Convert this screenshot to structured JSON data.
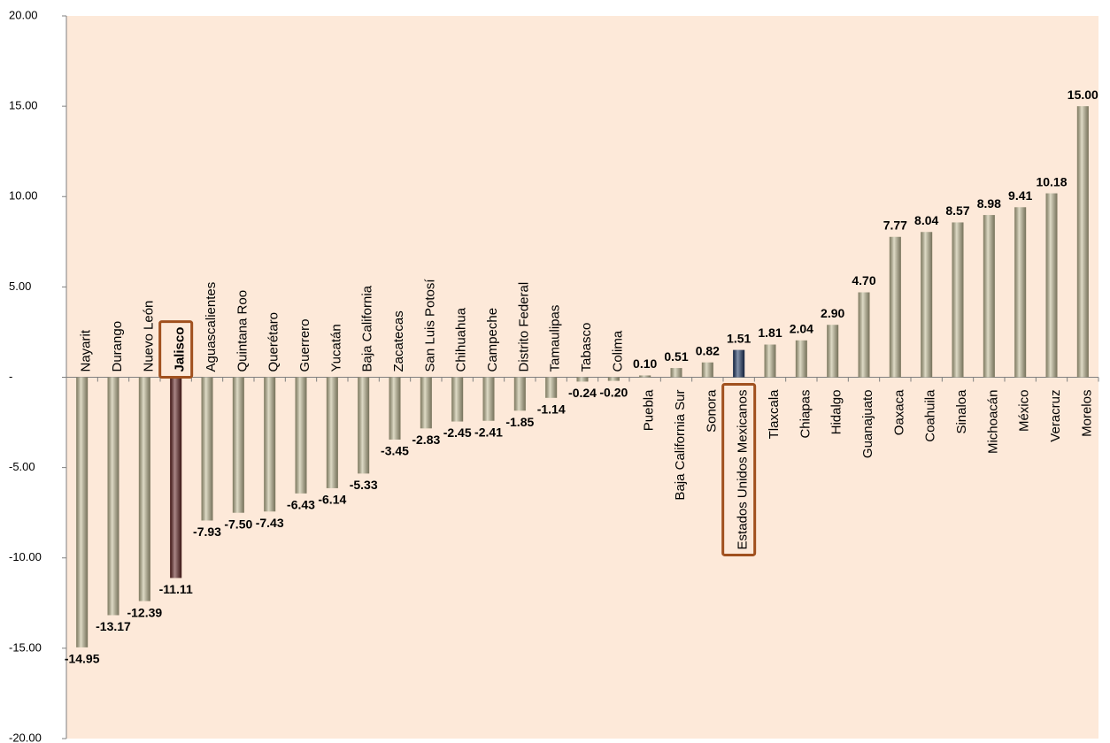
{
  "chart_data": {
    "type": "bar",
    "categories": [
      "Nayarit",
      "Durango",
      "Nuevo León",
      "Jalisco",
      "Aguascalientes",
      "Quintana Roo",
      "Querétaro",
      "Guerrero",
      "Yucatán",
      "Baja California",
      "Zacatecas",
      "San Luis Potosí",
      "Chihuahua",
      "Campeche",
      "Distrito  Federal",
      "Tamaulipas",
      "Tabasco",
      "Colima",
      "Puebla",
      "Baja California Sur",
      "Sonora",
      "Estados Unidos Mexicanos",
      "Tlaxcala",
      "Chiapas",
      "Hidalgo",
      "Guanajuato",
      "Oaxaca",
      "Coahuila",
      "Sinaloa",
      "Michoacán",
      "México",
      "Veracruz",
      "Morelos"
    ],
    "values": [
      -14.95,
      -13.17,
      -12.39,
      -11.11,
      -7.93,
      -7.5,
      -7.43,
      -6.43,
      -6.14,
      -5.33,
      -3.45,
      -2.83,
      -2.45,
      -2.41,
      -1.85,
      -1.14,
      -0.24,
      -0.2,
      0.1,
      0.51,
      0.82,
      1.51,
      1.81,
      2.04,
      2.9,
      4.7,
      7.77,
      8.04,
      8.57,
      8.98,
      9.41,
      10.18,
      15.0
    ],
    "value_labels": [
      "-14.95",
      "-13.17",
      "-12.39",
      "-11.11",
      "-7.93",
      "-7.50",
      "-7.43",
      "-6.43",
      "-6.14",
      "-5.33",
      "-3.45",
      "-2.83",
      "-2.45",
      "-2.41",
      "-1.85",
      "-1.14",
      "-0.24",
      "-0.20",
      "0.10",
      "0.51",
      "0.82",
      "1.51",
      "1.81",
      "2.04",
      "2.90",
      "4.70",
      "7.77",
      "8.04",
      "8.57",
      "8.98",
      "9.41",
      "10.18",
      "15.00"
    ],
    "color": "#c4bd97",
    "colors": [
      "#c4bd97",
      "#c4bd97",
      "#c4bd97",
      "#632523",
      "#c4bd97",
      "#c4bd97",
      "#c4bd97",
      "#c4bd97",
      "#c4bd97",
      "#c4bd97",
      "#c4bd97",
      "#c4bd97",
      "#c4bd97",
      "#c4bd97",
      "#c4bd97",
      "#c4bd97",
      "#c4bd97",
      "#c4bd97",
      "#c4bd97",
      "#c4bd97",
      "#c4bd97",
      "#1f3864",
      "#c4bd97",
      "#c4bd97",
      "#c4bd97",
      "#c4bd97",
      "#c4bd97",
      "#c4bd97",
      "#c4bd97",
      "#c4bd97",
      "#c4bd97",
      "#c4bd97",
      "#c4bd97"
    ],
    "ylim": [
      -20,
      20
    ],
    "yticks": [
      {
        "value": 20,
        "label": "20.00"
      },
      {
        "value": 15,
        "label": "15.00"
      },
      {
        "value": 10,
        "label": "10.00"
      },
      {
        "value": 5,
        "label": "5.00"
      },
      {
        "value": 0,
        "label": "-"
      },
      {
        "value": -5,
        "label": "-5.00"
      },
      {
        "value": -10,
        "label": "-10.00"
      },
      {
        "value": -15,
        "label": "-15.00"
      },
      {
        "value": -20,
        "label": "-20.00"
      }
    ],
    "grid": false
  }
}
